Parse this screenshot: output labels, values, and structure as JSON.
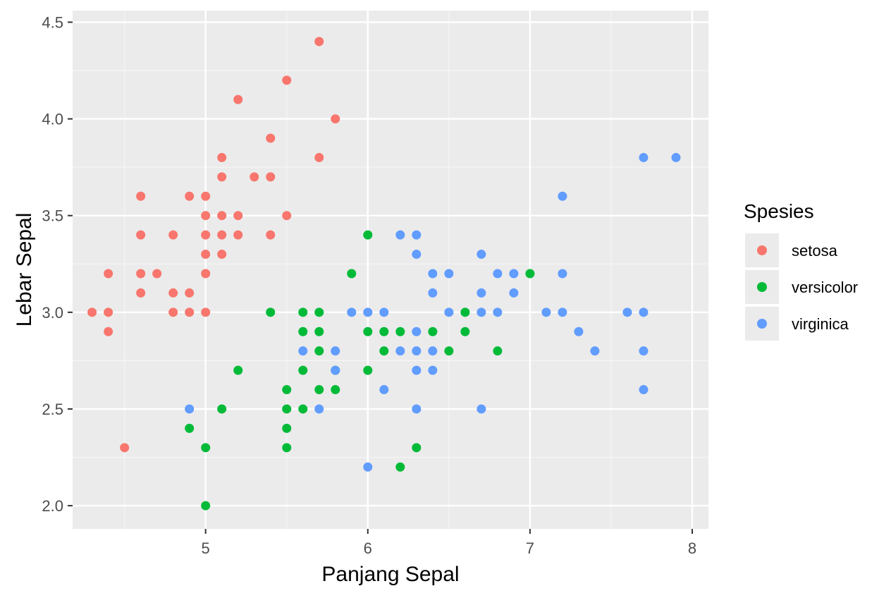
{
  "chart_data": {
    "type": "scatter",
    "title": "",
    "xlabel": "Panjang Sepal",
    "ylabel": "Lebar Sepal",
    "xlim": [
      4.18,
      8.1
    ],
    "ylim": [
      1.88,
      4.56
    ],
    "x_ticks": [
      5,
      6,
      7,
      8
    ],
    "x_tick_labels": [
      "5",
      "6",
      "7",
      "8"
    ],
    "y_ticks": [
      2.0,
      2.5,
      3.0,
      3.5,
      4.0,
      4.5
    ],
    "y_tick_labels": [
      "2.0",
      "2.5",
      "3.0",
      "3.5",
      "4.0",
      "4.5"
    ],
    "grid": true,
    "panel_background": "#ebebeb",
    "legend": {
      "title": "Spesies",
      "position": "right"
    },
    "series": [
      {
        "name": "setosa",
        "color": "#f8766d",
        "points": [
          [
            4.3,
            3.0
          ],
          [
            4.4,
            3.2
          ],
          [
            4.4,
            3.0
          ],
          [
            4.4,
            2.9
          ],
          [
            4.5,
            2.3
          ],
          [
            4.6,
            3.6
          ],
          [
            4.6,
            3.4
          ],
          [
            4.6,
            3.2
          ],
          [
            4.6,
            3.1
          ],
          [
            4.7,
            3.2
          ],
          [
            4.8,
            3.4
          ],
          [
            4.8,
            3.1
          ],
          [
            4.8,
            3.0
          ],
          [
            4.9,
            3.6
          ],
          [
            4.9,
            3.1
          ],
          [
            4.9,
            3.0
          ],
          [
            5.0,
            3.6
          ],
          [
            5.0,
            3.5
          ],
          [
            5.0,
            3.4
          ],
          [
            5.0,
            3.3
          ],
          [
            5.0,
            3.2
          ],
          [
            5.0,
            3.0
          ],
          [
            5.1,
            3.8
          ],
          [
            5.1,
            3.7
          ],
          [
            5.1,
            3.5
          ],
          [
            5.1,
            3.4
          ],
          [
            5.1,
            3.3
          ],
          [
            5.2,
            4.1
          ],
          [
            5.2,
            3.5
          ],
          [
            5.2,
            3.4
          ],
          [
            5.3,
            3.7
          ],
          [
            5.4,
            3.9
          ],
          [
            5.4,
            3.7
          ],
          [
            5.4,
            3.4
          ],
          [
            5.5,
            4.2
          ],
          [
            5.5,
            3.5
          ],
          [
            5.7,
            4.4
          ],
          [
            5.7,
            3.8
          ],
          [
            5.8,
            4.0
          ]
        ]
      },
      {
        "name": "versicolor",
        "color": "#00ba38",
        "points": [
          [
            4.9,
            2.4
          ],
          [
            5.0,
            2.3
          ],
          [
            5.0,
            2.0
          ],
          [
            5.1,
            2.5
          ],
          [
            5.2,
            2.7
          ],
          [
            5.4,
            3.0
          ],
          [
            5.5,
            2.6
          ],
          [
            5.5,
            2.5
          ],
          [
            5.5,
            2.4
          ],
          [
            5.5,
            2.3
          ],
          [
            5.6,
            3.0
          ],
          [
            5.6,
            2.9
          ],
          [
            5.6,
            2.7
          ],
          [
            5.6,
            2.5
          ],
          [
            5.7,
            3.0
          ],
          [
            5.7,
            2.9
          ],
          [
            5.7,
            2.8
          ],
          [
            5.7,
            2.6
          ],
          [
            5.8,
            2.6
          ],
          [
            5.8,
            2.7
          ],
          [
            5.9,
            3.2
          ],
          [
            6.0,
            3.4
          ],
          [
            6.0,
            2.9
          ],
          [
            6.0,
            2.7
          ],
          [
            6.1,
            2.9
          ],
          [
            6.1,
            2.8
          ],
          [
            6.2,
            2.9
          ],
          [
            6.2,
            2.2
          ],
          [
            6.3,
            2.3
          ],
          [
            6.4,
            2.9
          ],
          [
            6.5,
            2.8
          ],
          [
            6.6,
            3.0
          ],
          [
            6.6,
            2.9
          ],
          [
            6.8,
            2.8
          ],
          [
            7.0,
            3.2
          ]
        ]
      },
      {
        "name": "virginica",
        "color": "#619cff",
        "points": [
          [
            4.9,
            2.5
          ],
          [
            5.6,
            2.8
          ],
          [
            5.7,
            2.5
          ],
          [
            5.8,
            2.8
          ],
          [
            5.8,
            2.7
          ],
          [
            5.9,
            3.0
          ],
          [
            6.0,
            3.0
          ],
          [
            6.0,
            2.2
          ],
          [
            6.1,
            3.0
          ],
          [
            6.1,
            2.6
          ],
          [
            6.2,
            3.4
          ],
          [
            6.2,
            2.8
          ],
          [
            6.3,
            3.4
          ],
          [
            6.3,
            3.3
          ],
          [
            6.3,
            2.9
          ],
          [
            6.3,
            2.8
          ],
          [
            6.3,
            2.7
          ],
          [
            6.3,
            2.5
          ],
          [
            6.4,
            3.2
          ],
          [
            6.4,
            3.1
          ],
          [
            6.4,
            2.8
          ],
          [
            6.4,
            2.7
          ],
          [
            6.5,
            3.2
          ],
          [
            6.5,
            3.0
          ],
          [
            6.7,
            3.3
          ],
          [
            6.7,
            3.1
          ],
          [
            6.7,
            3.0
          ],
          [
            6.7,
            2.5
          ],
          [
            6.8,
            3.2
          ],
          [
            6.8,
            3.0
          ],
          [
            6.9,
            3.2
          ],
          [
            6.9,
            3.1
          ],
          [
            7.1,
            3.0
          ],
          [
            7.2,
            3.6
          ],
          [
            7.2,
            3.2
          ],
          [
            7.2,
            3.0
          ],
          [
            7.3,
            2.9
          ],
          [
            7.4,
            2.8
          ],
          [
            7.6,
            3.0
          ],
          [
            7.7,
            3.8
          ],
          [
            7.7,
            3.0
          ],
          [
            7.7,
            2.8
          ],
          [
            7.7,
            2.6
          ],
          [
            7.9,
            3.8
          ]
        ]
      }
    ]
  }
}
